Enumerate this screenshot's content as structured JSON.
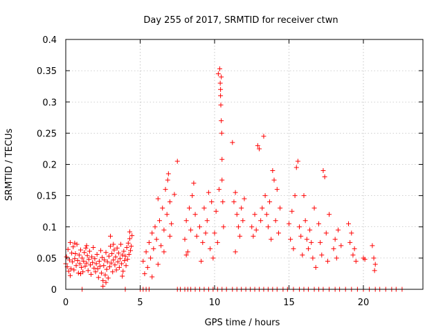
{
  "chart_data": {
    "type": "scatter",
    "title": "Day 255 of 2017, SRMTID for receiver ctwn",
    "xlabel": "GPS time / hours",
    "ylabel": "SRMTID / TECUs",
    "xlim": [
      0,
      24
    ],
    "ylim": [
      0,
      0.4
    ],
    "xticks": [
      0,
      5,
      10,
      15,
      20
    ],
    "xtick_labels": [
      "0",
      "5",
      "10",
      "15",
      "20"
    ],
    "yticks": [
      0,
      0.05,
      0.1,
      0.15,
      0.2,
      0.25,
      0.3,
      0.35,
      0.4
    ],
    "ytick_labels": [
      "0",
      "0.05",
      "0.1",
      "0.15",
      "0.2",
      "0.25",
      "0.3",
      "0.35",
      "0.4"
    ],
    "grid": true,
    "marker": "plus",
    "color": "#ff0000",
    "series": [
      {
        "name": "SRMTID",
        "points": [
          [
            0.0,
            0.041
          ],
          [
            0.05,
            0.052
          ],
          [
            0.1,
            0.036
          ],
          [
            0.15,
            0.064
          ],
          [
            0.2,
            0.029
          ],
          [
            0.25,
            0.047
          ],
          [
            0.3,
            0.075
          ],
          [
            0.35,
            0.033
          ],
          [
            0.4,
            0.058
          ],
          [
            0.45,
            0.044
          ],
          [
            0.5,
            0.068
          ],
          [
            0.55,
            0.031
          ],
          [
            0.6,
            0.049
          ],
          [
            0.65,
            0.057
          ],
          [
            0.7,
            0.038
          ],
          [
            0.75,
            0.072
          ],
          [
            0.8,
            0.046
          ],
          [
            0.85,
            0.026
          ],
          [
            0.9,
            0.055
          ],
          [
            0.95,
            0.041
          ],
          [
            1.0,
            0.063
          ],
          [
            1.05,
            0.035
          ],
          [
            1.1,
            0.05
          ],
          [
            1.15,
            0.028
          ],
          [
            1.2,
            0.045
          ],
          [
            1.25,
            0.059
          ],
          [
            1.3,
            0.037
          ],
          [
            1.35,
            0.066
          ],
          [
            1.4,
            0.042
          ],
          [
            1.45,
            0.054
          ],
          [
            1.5,
            0.03
          ],
          [
            1.55,
            0.048
          ],
          [
            1.6,
            0.061
          ],
          [
            1.65,
            0.039
          ],
          [
            1.7,
            0.024
          ],
          [
            1.75,
            0.052
          ],
          [
            1.8,
            0.043
          ],
          [
            1.85,
            0.067
          ],
          [
            1.9,
            0.034
          ],
          [
            1.95,
            0.049
          ],
          [
            2.0,
            0.028
          ],
          [
            2.05,
            0.041
          ],
          [
            2.1,
            0.056
          ],
          [
            2.15,
            0.033
          ],
          [
            2.2,
            0.019
          ],
          [
            2.25,
            0.045
          ],
          [
            2.3,
            0.037
          ],
          [
            2.35,
            0.062
          ],
          [
            2.4,
            0.026
          ],
          [
            2.45,
            0.051
          ],
          [
            2.5,
            0.014
          ],
          [
            2.55,
            0.038
          ],
          [
            2.6,
            0.047
          ],
          [
            2.65,
            0.023
          ],
          [
            2.7,
            0.059
          ],
          [
            2.75,
            0.032
          ],
          [
            2.8,
            0.044
          ],
          [
            2.85,
            0.018
          ],
          [
            2.9,
            0.053
          ],
          [
            2.95,
            0.036
          ],
          [
            3.0,
            0.069
          ],
          [
            3.05,
            0.042
          ],
          [
            3.1,
            0.057
          ],
          [
            3.15,
            0.028
          ],
          [
            3.2,
            0.047
          ],
          [
            3.25,
            0.063
          ],
          [
            3.3,
            0.039
          ],
          [
            3.35,
            0.052
          ],
          [
            3.4,
            0.031
          ],
          [
            3.45,
            0.066
          ],
          [
            3.5,
            0.044
          ],
          [
            3.55,
            0.058
          ],
          [
            3.6,
            0.035
          ],
          [
            3.65,
            0.049
          ],
          [
            3.7,
            0.072
          ],
          [
            3.75,
            0.041
          ],
          [
            3.8,
            0.055
          ],
          [
            3.85,
            0.029
          ],
          [
            3.9,
            0.061
          ],
          [
            3.95,
            0.046
          ],
          [
            4.0,
            0.053
          ],
          [
            4.05,
            0.038
          ],
          [
            4.1,
            0.067
          ],
          [
            4.15,
            0.048
          ],
          [
            4.2,
            0.074
          ],
          [
            4.25,
            0.056
          ],
          [
            4.3,
            0.081
          ],
          [
            4.35,
            0.062
          ],
          [
            4.4,
            0.069
          ],
          [
            4.45,
            0.086
          ],
          [
            0.3,
            0.022
          ],
          [
            0.6,
            0.074
          ],
          [
            1.0,
            0.025
          ],
          [
            1.4,
            0.07
          ],
          [
            2.5,
            0.005
          ],
          [
            2.7,
            0.011
          ],
          [
            3.0,
            0.085
          ],
          [
            3.2,
            0.072
          ],
          [
            4.3,
            0.092
          ],
          [
            3.8,
            0.021
          ],
          [
            5.2,
            0.045
          ],
          [
            5.3,
            0.025
          ],
          [
            5.4,
            0.06
          ],
          [
            5.5,
            0.035
          ],
          [
            5.6,
            0.075
          ],
          [
            5.7,
            0.05
          ],
          [
            5.8,
            0.09
          ],
          [
            5.9,
            0.065
          ],
          [
            6.0,
            0.1
          ],
          [
            6.1,
            0.08
          ],
          [
            6.2,
            0.145
          ],
          [
            6.3,
            0.11
          ],
          [
            6.4,
            0.07
          ],
          [
            6.5,
            0.13
          ],
          [
            6.6,
            0.095
          ],
          [
            6.7,
            0.16
          ],
          [
            6.8,
            0.12
          ],
          [
            6.9,
            0.185
          ],
          [
            7.0,
            0.14
          ],
          [
            7.1,
            0.105
          ],
          [
            5.8,
            0.02
          ],
          [
            6.2,
            0.04
          ],
          [
            6.6,
            0.06
          ],
          [
            7.0,
            0.085
          ],
          [
            6.85,
            0.175
          ],
          [
            7.3,
            0.152
          ],
          [
            7.5,
            0.205
          ],
          [
            8.0,
            0.08
          ],
          [
            8.1,
            0.11
          ],
          [
            8.2,
            0.06
          ],
          [
            8.3,
            0.13
          ],
          [
            8.4,
            0.095
          ],
          [
            8.5,
            0.15
          ],
          [
            8.6,
            0.17
          ],
          [
            8.7,
            0.12
          ],
          [
            8.1,
            0.055
          ],
          [
            8.8,
            0.085
          ],
          [
            9.0,
            0.1
          ],
          [
            9.1,
            0.045
          ],
          [
            9.2,
            0.075
          ],
          [
            9.3,
            0.13
          ],
          [
            9.4,
            0.09
          ],
          [
            9.5,
            0.11
          ],
          [
            9.6,
            0.155
          ],
          [
            9.7,
            0.065
          ],
          [
            9.8,
            0.14
          ],
          [
            9.9,
            0.05
          ],
          [
            10.0,
            0.09
          ],
          [
            10.1,
            0.125
          ],
          [
            10.2,
            0.075
          ],
          [
            10.3,
            0.16
          ],
          [
            10.35,
            0.353
          ],
          [
            10.38,
            0.33
          ],
          [
            10.4,
            0.31
          ],
          [
            10.42,
            0.295
          ],
          [
            10.45,
            0.27
          ],
          [
            10.48,
            0.25
          ],
          [
            10.5,
            0.208
          ],
          [
            10.5,
            0.175
          ],
          [
            10.55,
            0.14
          ],
          [
            10.6,
            0.1
          ],
          [
            10.25,
            0.345
          ],
          [
            10.45,
            0.34
          ],
          [
            10.4,
            0.32
          ],
          [
            11.2,
            0.235
          ],
          [
            11.3,
            0.14
          ],
          [
            11.4,
            0.155
          ],
          [
            11.5,
            0.12
          ],
          [
            11.6,
            0.1
          ],
          [
            11.7,
            0.085
          ],
          [
            11.8,
            0.13
          ],
          [
            11.9,
            0.11
          ],
          [
            12.0,
            0.145
          ],
          [
            11.4,
            0.06
          ],
          [
            12.5,
            0.1
          ],
          [
            12.6,
            0.085
          ],
          [
            12.7,
            0.12
          ],
          [
            12.8,
            0.095
          ],
          [
            12.9,
            0.23
          ],
          [
            13.0,
            0.225
          ],
          [
            13.1,
            0.11
          ],
          [
            13.2,
            0.13
          ],
          [
            13.3,
            0.245
          ],
          [
            13.4,
            0.15
          ],
          [
            13.5,
            0.12
          ],
          [
            13.6,
            0.1
          ],
          [
            13.7,
            0.14
          ],
          [
            13.8,
            0.08
          ],
          [
            13.9,
            0.19
          ],
          [
            14.0,
            0.175
          ],
          [
            14.1,
            0.11
          ],
          [
            14.2,
            0.16
          ],
          [
            14.3,
            0.09
          ],
          [
            14.4,
            0.13
          ],
          [
            15.0,
            0.105
          ],
          [
            15.1,
            0.08
          ],
          [
            15.2,
            0.125
          ],
          [
            15.3,
            0.065
          ],
          [
            15.4,
            0.15
          ],
          [
            15.5,
            0.195
          ],
          [
            15.6,
            0.205
          ],
          [
            15.7,
            0.1
          ],
          [
            15.8,
            0.085
          ],
          [
            15.9,
            0.055
          ],
          [
            16.0,
            0.15
          ],
          [
            16.1,
            0.11
          ],
          [
            16.2,
            0.08
          ],
          [
            16.3,
            0.065
          ],
          [
            16.4,
            0.095
          ],
          [
            16.5,
            0.075
          ],
          [
            16.6,
            0.05
          ],
          [
            16.7,
            0.13
          ],
          [
            16.8,
            0.035
          ],
          [
            17.0,
            0.105
          ],
          [
            17.1,
            0.075
          ],
          [
            17.2,
            0.055
          ],
          [
            17.3,
            0.19
          ],
          [
            17.4,
            0.18
          ],
          [
            17.5,
            0.09
          ],
          [
            17.6,
            0.045
          ],
          [
            17.7,
            0.12
          ],
          [
            18.0,
            0.065
          ],
          [
            18.1,
            0.08
          ],
          [
            18.2,
            0.05
          ],
          [
            18.3,
            0.095
          ],
          [
            18.5,
            0.07
          ],
          [
            19.0,
            0.105
          ],
          [
            19.1,
            0.075
          ],
          [
            19.2,
            0.09
          ],
          [
            19.3,
            0.055
          ],
          [
            19.4,
            0.065
          ],
          [
            19.5,
            0.045
          ],
          [
            20.0,
            0.05
          ],
          [
            20.1,
            0.048
          ],
          [
            20.6,
            0.07
          ],
          [
            20.7,
            0.05
          ],
          [
            20.8,
            0.04
          ],
          [
            20.75,
            0.03
          ]
        ]
      }
    ],
    "zero_ticks_x": [
      1.1,
      4.0,
      5.0,
      5.2,
      5.4,
      5.6,
      7.5,
      7.7,
      8.0,
      8.2,
      8.4,
      8.7,
      9.0,
      9.3,
      9.6,
      9.9,
      10.2,
      10.5,
      10.8,
      11.2,
      11.5,
      11.8,
      12.1,
      12.4,
      12.7,
      13.0,
      13.3,
      13.6,
      13.9,
      14.2,
      14.6,
      14.9,
      15.3,
      15.7,
      16.0,
      16.3,
      16.7,
      17.0,
      17.3,
      17.7,
      18.1,
      18.4,
      18.8,
      19.2,
      19.6,
      20.0,
      20.4,
      20.8,
      21.1,
      21.5,
      21.9,
      22.2,
      22.6
    ]
  }
}
